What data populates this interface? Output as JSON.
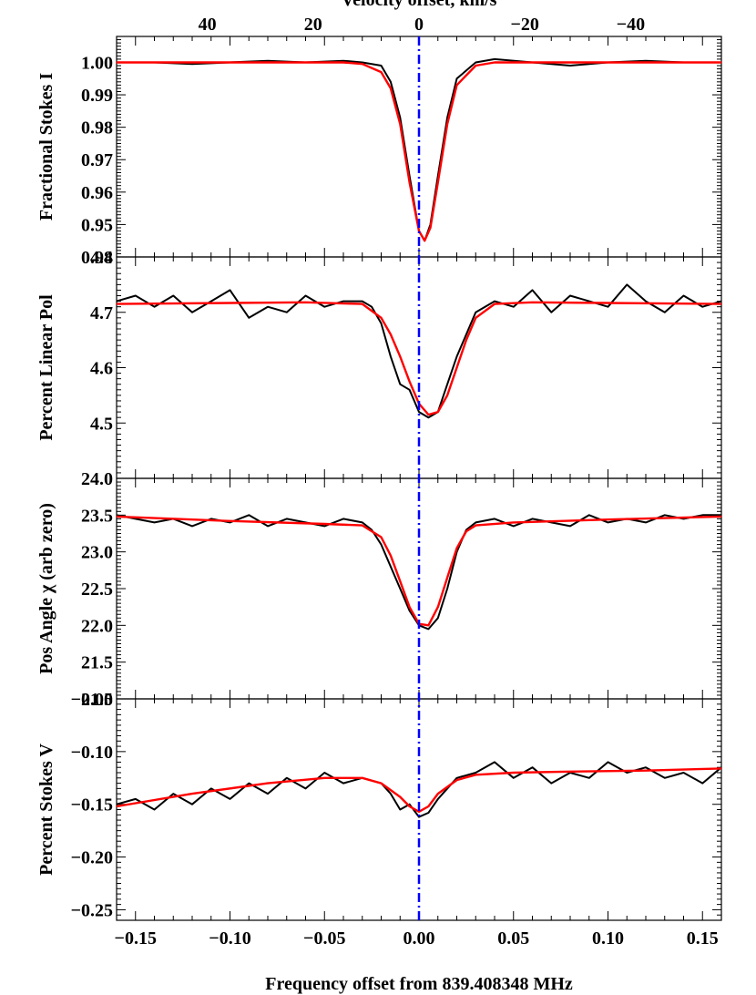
{
  "chart_data": {
    "type": "line",
    "top_axis_label": "Velocity offset, km/s",
    "top_axis_ticks": [
      40,
      20,
      0,
      -20,
      -40
    ],
    "top_axis_tick_labels": [
      "40",
      "20",
      "0",
      "−20",
      "−40"
    ],
    "xlabel": "Frequency offset from 839.408348 MHz",
    "xlim": [
      -0.16,
      0.16
    ],
    "x_ticks": [
      -0.15,
      -0.1,
      -0.05,
      0.0,
      0.05,
      0.1,
      0.15
    ],
    "x_tick_labels": [
      "−0.15",
      "−0.10",
      "−0.05",
      "0.00",
      "0.05",
      "0.10",
      "0.15"
    ],
    "marker_line_x": 0.0,
    "colors": {
      "data": "#000000",
      "fit": "#ff0000",
      "marker": "#0000ff"
    },
    "panels": [
      {
        "ylabel": "Fractional Stokes I",
        "ylim": [
          0.94,
          1.008
        ],
        "y_ticks": [
          0.94,
          0.95,
          0.96,
          0.97,
          0.98,
          0.99,
          1.0
        ],
        "y_tick_labels": [
          "0.94",
          "0.95",
          "0.96",
          "0.97",
          "0.98",
          "0.99",
          "1.00"
        ],
        "series": [
          {
            "role": "data",
            "x": [
              -0.16,
              -0.14,
              -0.12,
              -0.1,
              -0.08,
              -0.06,
              -0.04,
              -0.03,
              -0.02,
              -0.015,
              -0.01,
              -0.005,
              0.0,
              0.003,
              0.006,
              0.01,
              0.015,
              0.02,
              0.03,
              0.04,
              0.06,
              0.08,
              0.1,
              0.12,
              0.14,
              0.16
            ],
            "y": [
              1.0,
              1.0,
              0.9995,
              1.0,
              1.0005,
              1.0,
              1.0005,
              1.0,
              0.999,
              0.994,
              0.983,
              0.965,
              0.948,
              0.945,
              0.95,
              0.965,
              0.983,
              0.995,
              1.0,
              1.001,
              1.0,
              0.999,
              1.0,
              1.0005,
              1.0,
              1.0
            ]
          },
          {
            "role": "fit",
            "x": [
              -0.16,
              -0.08,
              -0.04,
              -0.03,
              -0.02,
              -0.015,
              -0.01,
              -0.005,
              0.0,
              0.003,
              0.006,
              0.01,
              0.015,
              0.02,
              0.03,
              0.04,
              0.08,
              0.16
            ],
            "y": [
              1.0,
              1.0,
              1.0,
              0.9995,
              0.997,
              0.992,
              0.981,
              0.963,
              0.948,
              0.945,
              0.949,
              0.963,
              0.981,
              0.993,
              0.999,
              1.0,
              1.0,
              1.0
            ]
          }
        ]
      },
      {
        "ylabel": "Percent Linear Pol",
        "ylim": [
          4.4,
          4.8
        ],
        "y_ticks": [
          4.5,
          4.6,
          4.7,
          4.8
        ],
        "y_tick_labels": [
          "4.5",
          "4.6",
          "4.7",
          "4.8"
        ],
        "series": [
          {
            "role": "data",
            "x": [
              -0.16,
              -0.15,
              -0.14,
              -0.13,
              -0.12,
              -0.11,
              -0.1,
              -0.09,
              -0.08,
              -0.07,
              -0.06,
              -0.05,
              -0.04,
              -0.03,
              -0.025,
              -0.02,
              -0.015,
              -0.01,
              -0.005,
              0.0,
              0.005,
              0.01,
              0.015,
              0.02,
              0.025,
              0.03,
              0.04,
              0.05,
              0.06,
              0.07,
              0.08,
              0.09,
              0.1,
              0.11,
              0.12,
              0.13,
              0.14,
              0.15,
              0.16
            ],
            "y": [
              4.72,
              4.73,
              4.71,
              4.73,
              4.7,
              4.72,
              4.74,
              4.69,
              4.71,
              4.7,
              4.73,
              4.71,
              4.72,
              4.72,
              4.71,
              4.68,
              4.62,
              4.57,
              4.56,
              4.52,
              4.51,
              4.52,
              4.57,
              4.62,
              4.66,
              4.7,
              4.72,
              4.71,
              4.74,
              4.7,
              4.73,
              4.72,
              4.71,
              4.75,
              4.72,
              4.7,
              4.73,
              4.71,
              4.72
            ]
          },
          {
            "role": "fit",
            "x": [
              -0.16,
              -0.06,
              -0.03,
              -0.02,
              -0.015,
              -0.01,
              -0.005,
              0.0,
              0.005,
              0.01,
              0.015,
              0.02,
              0.025,
              0.03,
              0.04,
              0.06,
              0.16
            ],
            "y": [
              4.715,
              4.718,
              4.715,
              4.69,
              4.66,
              4.62,
              4.575,
              4.535,
              4.515,
              4.52,
              4.55,
              4.6,
              4.65,
              4.69,
              4.715,
              4.718,
              4.715
            ]
          }
        ]
      },
      {
        "ylabel": "Pos Angle χ (arb zero)",
        "ylim": [
          21.0,
          24.0
        ],
        "y_ticks": [
          21.0,
          21.5,
          22.0,
          22.5,
          23.0,
          23.5,
          24.0
        ],
        "y_tick_labels": [
          "21.0",
          "21.5",
          "22.0",
          "22.5",
          "23.0",
          "23.5",
          "24.0"
        ],
        "series": [
          {
            "role": "data",
            "x": [
              -0.16,
              -0.15,
              -0.14,
              -0.13,
              -0.12,
              -0.11,
              -0.1,
              -0.09,
              -0.08,
              -0.07,
              -0.06,
              -0.05,
              -0.04,
              -0.03,
              -0.025,
              -0.02,
              -0.015,
              -0.01,
              -0.005,
              0.0,
              0.005,
              0.01,
              0.015,
              0.02,
              0.025,
              0.03,
              0.04,
              0.05,
              0.06,
              0.07,
              0.08,
              0.09,
              0.1,
              0.11,
              0.12,
              0.13,
              0.14,
              0.15,
              0.16
            ],
            "y": [
              23.5,
              23.45,
              23.4,
              23.45,
              23.35,
              23.45,
              23.4,
              23.5,
              23.35,
              23.45,
              23.4,
              23.35,
              23.45,
              23.4,
              23.3,
              23.1,
              22.8,
              22.5,
              22.2,
              22.0,
              21.95,
              22.1,
              22.5,
              23.0,
              23.3,
              23.4,
              23.45,
              23.35,
              23.45,
              23.4,
              23.35,
              23.5,
              23.4,
              23.45,
              23.4,
              23.5,
              23.45,
              23.5,
              23.5
            ]
          },
          {
            "role": "fit",
            "x": [
              -0.16,
              -0.1,
              -0.05,
              -0.03,
              -0.02,
              -0.015,
              -0.01,
              -0.005,
              0.0,
              0.005,
              0.01,
              0.015,
              0.02,
              0.025,
              0.03,
              0.05,
              0.1,
              0.16
            ],
            "y": [
              23.48,
              23.42,
              23.38,
              23.36,
              23.2,
              22.95,
              22.6,
              22.25,
              22.02,
              22.0,
              22.25,
              22.65,
              23.05,
              23.28,
              23.36,
              23.4,
              23.44,
              23.48
            ]
          }
        ]
      },
      {
        "ylabel": "Percent Stokes V",
        "ylim": [
          -0.26,
          -0.05
        ],
        "y_ticks": [
          -0.25,
          -0.2,
          -0.15,
          -0.1,
          -0.05
        ],
        "y_tick_labels": [
          "−0.25",
          "−0.20",
          "−0.15",
          "−0.10",
          "−0.05"
        ],
        "series": [
          {
            "role": "data",
            "x": [
              -0.16,
              -0.15,
              -0.14,
              -0.13,
              -0.12,
              -0.11,
              -0.1,
              -0.09,
              -0.08,
              -0.07,
              -0.06,
              -0.05,
              -0.04,
              -0.03,
              -0.02,
              -0.015,
              -0.01,
              -0.005,
              0.0,
              0.005,
              0.01,
              0.015,
              0.02,
              0.03,
              0.04,
              0.05,
              0.06,
              0.07,
              0.08,
              0.09,
              0.1,
              0.11,
              0.12,
              0.13,
              0.14,
              0.15,
              0.16
            ],
            "y": [
              -0.15,
              -0.145,
              -0.155,
              -0.14,
              -0.15,
              -0.135,
              -0.145,
              -0.13,
              -0.14,
              -0.125,
              -0.135,
              -0.12,
              -0.13,
              -0.125,
              -0.13,
              -0.14,
              -0.155,
              -0.15,
              -0.162,
              -0.158,
              -0.145,
              -0.135,
              -0.125,
              -0.12,
              -0.11,
              -0.125,
              -0.115,
              -0.13,
              -0.12,
              -0.125,
              -0.11,
              -0.12,
              -0.115,
              -0.125,
              -0.12,
              -0.13,
              -0.115
            ]
          },
          {
            "role": "fit",
            "x": [
              -0.16,
              -0.12,
              -0.08,
              -0.05,
              -0.03,
              -0.02,
              -0.01,
              -0.005,
              0.0,
              0.005,
              0.01,
              0.02,
              0.03,
              0.05,
              0.08,
              0.12,
              0.16
            ],
            "y": [
              -0.152,
              -0.14,
              -0.13,
              -0.125,
              -0.125,
              -0.13,
              -0.143,
              -0.152,
              -0.157,
              -0.152,
              -0.14,
              -0.127,
              -0.122,
              -0.12,
              -0.119,
              -0.118,
              -0.116
            ]
          }
        ]
      }
    ]
  }
}
